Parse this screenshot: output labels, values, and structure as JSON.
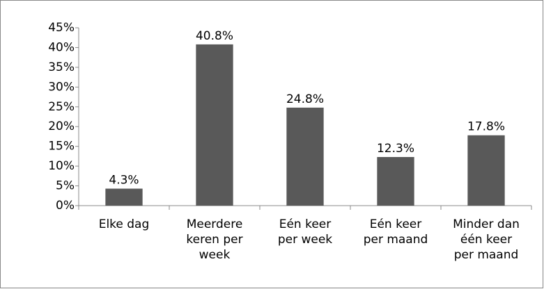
{
  "chart_data": {
    "type": "bar",
    "categories": [
      "Elke dag",
      "Meerdere\nkeren per\nweek",
      "Eén keer\nper week",
      "Eén keer\nper maand",
      "Minder dan\néén keer\nper maand"
    ],
    "values": [
      4.3,
      40.8,
      24.8,
      12.3,
      17.8
    ],
    "value_labels": [
      "4.3%",
      "40.8%",
      "24.8%",
      "12.3%",
      "17.8%"
    ],
    "color": "#595959",
    "ylim": [
      0,
      45
    ],
    "yticks": [
      {
        "value": 0,
        "label": "0%"
      },
      {
        "value": 5,
        "label": "5%"
      },
      {
        "value": 10,
        "label": "10%"
      },
      {
        "value": 15,
        "label": "15%"
      },
      {
        "value": 20,
        "label": "20%"
      },
      {
        "value": 25,
        "label": "25%"
      },
      {
        "value": 30,
        "label": "30%"
      },
      {
        "value": 35,
        "label": "35%"
      },
      {
        "value": 40,
        "label": "40%"
      },
      {
        "value": 45,
        "label": "45%"
      }
    ],
    "grid": false
  }
}
